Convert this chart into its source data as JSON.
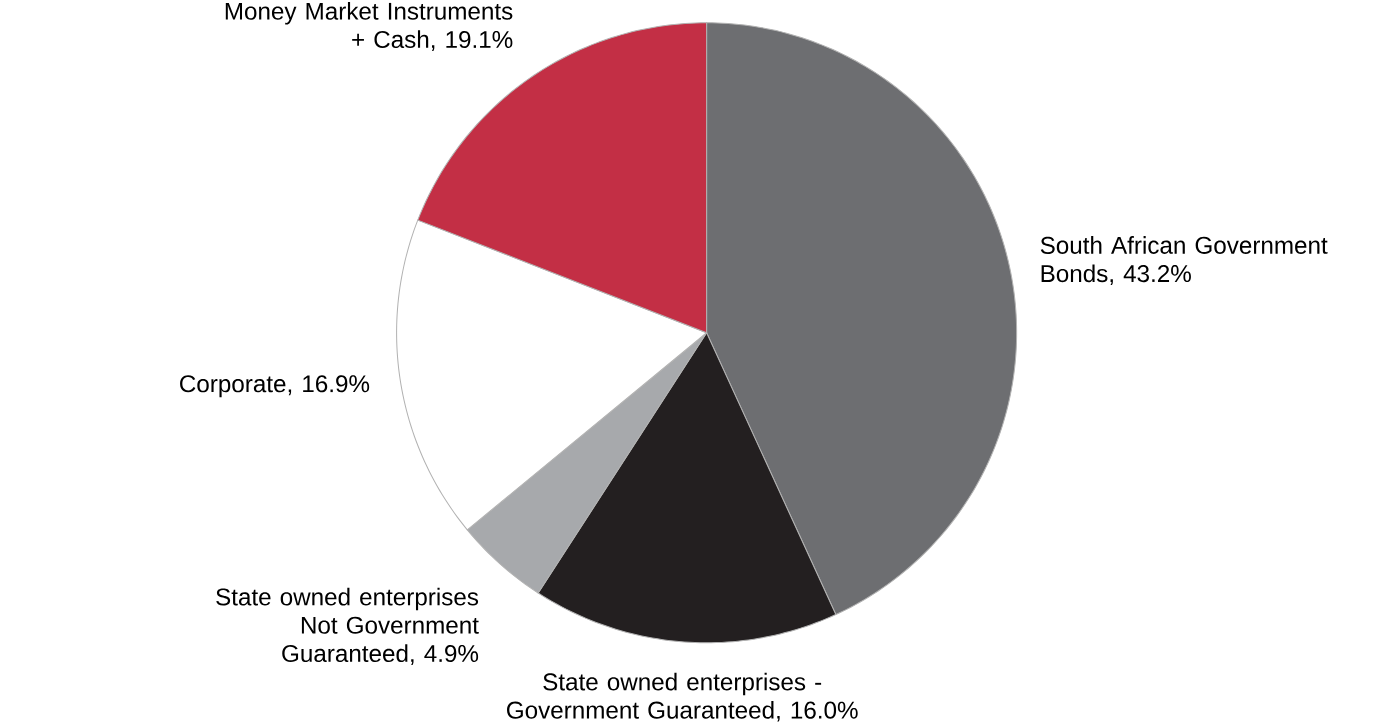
{
  "chart_data": {
    "type": "pie",
    "categories": [
      "South African Government Bonds, 43.2%",
      "State owned enterprises - Government Guaranteed, 16.0%",
      "State owned enterprises Not Government Guaranteed, 4.9%",
      "Corporate, 16.9%",
      "Money Market Instruments + Cash, 19.1%"
    ],
    "values": [
      43.2,
      16.0,
      4.9,
      16.9,
      19.1
    ],
    "colors": [
      "#6d6e71",
      "#231f20",
      "#a7a9ac",
      "#ffffff",
      "#c32f45"
    ]
  }
}
